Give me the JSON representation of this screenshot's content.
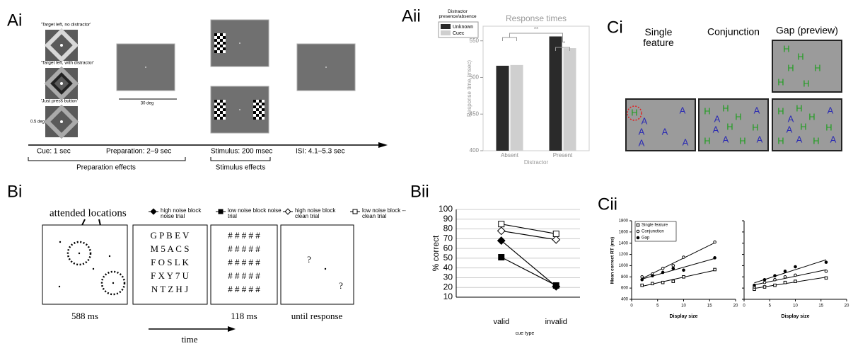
{
  "figure": {
    "panel_labels": [
      "Ai",
      "Aii",
      "Bi",
      "Bii",
      "Ci",
      "Cii"
    ],
    "ai": {
      "cue_labels": [
        "'Target left, no distractor'",
        "'Target left, with distractor'",
        "'Just press button'"
      ],
      "size_label": "0.5 deg",
      "scale_label": "30 deg",
      "timeline": [
        "Cue: 1 sec",
        "Preparation: 2–9 sec",
        "Stimulus: 200 msec",
        "ISI: 4.1–5.3 sec"
      ],
      "effects": [
        "Preparation effects",
        "Stimulus effects"
      ]
    },
    "bi": {
      "annotation": "attended locations",
      "letters": [
        "G P B E V",
        "M 5 A C S",
        "F O S L K",
        "F X Y 7 U",
        "N T Z H J"
      ],
      "mask": [
        "# # # # #",
        "# # # # #",
        "# # # # #",
        "# # # # #",
        "# # # # #"
      ],
      "questions": [
        "?",
        "?"
      ],
      "durations": [
        "588 ms",
        "118 ms",
        "until response"
      ],
      "time": "time"
    },
    "ci": {
      "conditions": [
        "Single feature",
        "Conjunction",
        "Gap (preview)"
      ],
      "colors": {
        "A": "#2b2bb3",
        "H": "#1e9e1e"
      },
      "preview": [
        "H",
        "H",
        "H",
        "H",
        "H",
        "H"
      ],
      "displays": [
        [
          "H",
          "A",
          "A",
          "A",
          "A",
          "A",
          "A"
        ],
        [
          "H",
          "H",
          "A",
          "A",
          "H",
          "A",
          "H",
          "H",
          "H",
          "A",
          "H",
          "A"
        ],
        [
          "H",
          "H",
          "A",
          "A",
          "H",
          "A",
          "H",
          "H",
          "H",
          "A",
          "H",
          "A"
        ]
      ]
    }
  },
  "chart_data": [
    {
      "type": "bar",
      "title": "Response times",
      "y_label": "Response time (msec)",
      "x_label": "Distractor",
      "legend_title": "Distractor presence/absence",
      "categories": [
        "Absent",
        "Present"
      ],
      "series": [
        {
          "name": "Unknown",
          "color": "#2a2a2a",
          "values": [
            516,
            556
          ]
        },
        {
          "name": "Cuec",
          "color": "#cfcfcf",
          "values": [
            517,
            540
          ]
        }
      ],
      "ylim": [
        400,
        570
      ],
      "yticks": [
        400,
        450,
        500,
        550
      ],
      "annotations": [
        "**",
        "*"
      ]
    },
    {
      "type": "line",
      "y_label": "% correct",
      "x_label": "cue type",
      "categories": [
        "valid",
        "invalid"
      ],
      "series": [
        {
          "name": "high noise block noise trial",
          "marker": "diamond-filled",
          "color": "#000",
          "values": [
            68,
            21
          ]
        },
        {
          "name": "low noise block noise trial",
          "marker": "square-filled",
          "color": "#000",
          "values": [
            51,
            22
          ]
        },
        {
          "name": "high noise block clean trial",
          "marker": "diamond-open",
          "color": "#000",
          "values": [
            78,
            69
          ]
        },
        {
          "name": "low noise block -- clean trial",
          "marker": "square-open",
          "color": "#000",
          "values": [
            85,
            75
          ]
        }
      ],
      "ylim": [
        10,
        100
      ],
      "yticks": [
        10,
        20,
        30,
        40,
        50,
        60,
        70,
        80,
        90,
        100
      ],
      "grid": true
    },
    {
      "type": "scatter",
      "y_label": "Mean correct RT (ms)",
      "x_label": "Display size",
      "x": [
        2,
        4,
        6,
        8,
        10,
        16
      ],
      "series": [
        {
          "name": "Single feature",
          "marker": "square-open",
          "values": [
            650,
            680,
            700,
            720,
            800,
            930
          ]
        },
        {
          "name": "Conjunction",
          "marker": "circle-open",
          "values": [
            800,
            850,
            950,
            1000,
            1150,
            1420
          ]
        },
        {
          "name": "Gap",
          "marker": "circle-filled",
          "values": [
            750,
            820,
            880,
            950,
            920,
            1140
          ]
        }
      ],
      "xlim": [
        0,
        20
      ],
      "xticks": [
        0,
        5,
        10,
        15,
        20
      ],
      "ylim": [
        400,
        1800
      ],
      "yticks": [
        400,
        600,
        800,
        1000,
        1200,
        1400,
        1600,
        1800
      ]
    },
    {
      "type": "scatter",
      "x_label": "Display size",
      "x": [
        2,
        4,
        6,
        8,
        10,
        16
      ],
      "series": [
        {
          "marker": "square-open",
          "values": [
            580,
            620,
            650,
            700,
            720,
            780
          ]
        },
        {
          "marker": "circle-open",
          "values": [
            620,
            700,
            750,
            800,
            830,
            900
          ]
        },
        {
          "marker": "circle-filled",
          "values": [
            650,
            750,
            820,
            900,
            980,
            1060
          ]
        }
      ],
      "xlim": [
        0,
        20
      ],
      "xticks": [
        0,
        5,
        10,
        15,
        20
      ],
      "ylim": [
        400,
        1800
      ],
      "yticks": [
        400,
        600,
        800,
        1000,
        1200,
        1400,
        1600,
        1800
      ]
    }
  ]
}
